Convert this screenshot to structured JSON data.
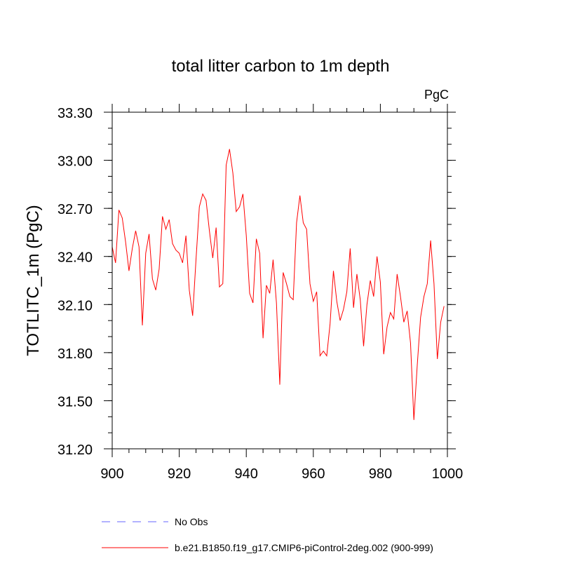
{
  "chart_data": {
    "type": "line",
    "title": "total litter carbon to 1m depth",
    "units_label": "PgC",
    "xlabel": "",
    "ylabel": "TOTLITC_1m  (PgC)",
    "xlim": [
      900,
      1000
    ],
    "ylim": [
      31.2,
      33.3
    ],
    "x_ticks": [
      900,
      920,
      940,
      960,
      980,
      1000
    ],
    "x_tick_labels": [
      "900",
      "920",
      "940",
      "960",
      "980",
      "1000"
    ],
    "y_ticks": [
      31.2,
      31.5,
      31.8,
      32.1,
      32.4,
      32.7,
      33.0,
      33.3
    ],
    "y_tick_labels": [
      "31.20",
      "31.50",
      "31.80",
      "32.10",
      "32.40",
      "32.70",
      "33.00",
      "33.30"
    ],
    "legend": [
      {
        "label": "No Obs",
        "color": "#6666ff",
        "style": "dashed"
      },
      {
        "label": "b.e21.B1850.f19_g17.CMIP6-piControl-2deg.002 (900-999)",
        "color": "#ff0000",
        "style": "solid"
      }
    ],
    "series": [
      {
        "name": "b.e21.B1850.f19_g17.CMIP6-piControl-2deg.002 (900-999)",
        "color": "#ff0000",
        "x_start": 900,
        "values": [
          32.46,
          32.36,
          32.69,
          32.64,
          32.49,
          32.31,
          32.45,
          32.56,
          32.46,
          31.97,
          32.42,
          32.54,
          32.26,
          32.19,
          32.32,
          32.65,
          32.57,
          32.63,
          32.48,
          32.44,
          32.42,
          32.36,
          32.53,
          32.19,
          32.03,
          32.38,
          32.71,
          32.79,
          32.75,
          32.56,
          32.39,
          32.58,
          32.21,
          32.23,
          32.97,
          33.07,
          32.92,
          32.68,
          32.71,
          32.79,
          32.53,
          32.17,
          32.11,
          32.51,
          32.42,
          31.89,
          32.22,
          32.17,
          32.38,
          32.11,
          31.6,
          32.3,
          32.23,
          32.15,
          32.13,
          32.61,
          32.78,
          32.61,
          32.57,
          32.23,
          32.12,
          32.18,
          31.78,
          31.81,
          31.78,
          31.98,
          32.31,
          32.12,
          32.0,
          32.07,
          32.18,
          32.45,
          32.08,
          32.29,
          32.13,
          31.84,
          32.1,
          32.25,
          32.15,
          32.4,
          32.24,
          31.79,
          31.96,
          32.05,
          32.01,
          32.29,
          32.15,
          31.99,
          32.06,
          31.86,
          31.38,
          31.72,
          32.02,
          32.15,
          32.23,
          32.5,
          32.23,
          31.76,
          31.99,
          32.09
        ]
      }
    ]
  }
}
